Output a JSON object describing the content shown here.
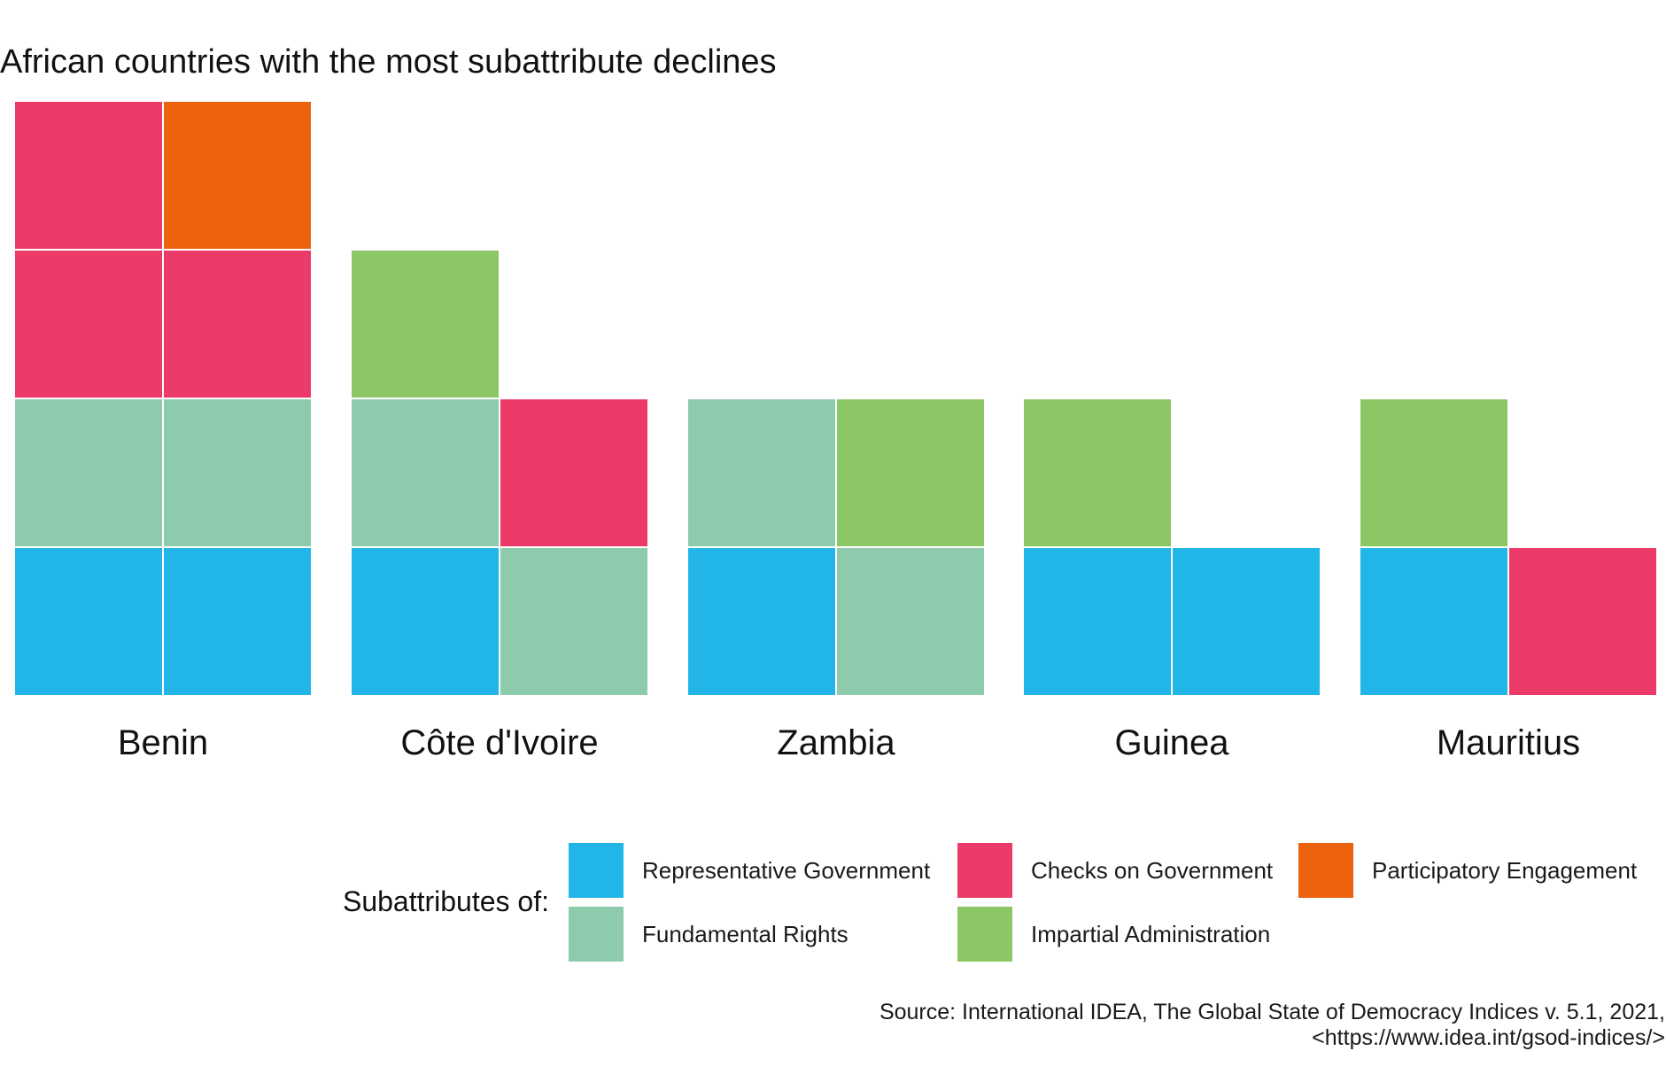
{
  "chart_data": {
    "type": "waffle",
    "title": "African countries with the most subattribute declines",
    "legend_title": "Subattributes of:",
    "categories": [
      "Benin",
      "Côte d'Ivoire",
      "Zambia",
      "Guinea",
      "Mauritius"
    ],
    "legend": [
      {
        "key": "rep",
        "label": "Representative Government",
        "color": "#21B6E7"
      },
      {
        "key": "checks",
        "label": "Checks on Government",
        "color": "#EC3A69"
      },
      {
        "key": "partic",
        "label": "Participatory Engagement",
        "color": "#EC620D"
      },
      {
        "key": "fund",
        "label": "Fundamental Rights",
        "color": "#8ECAAC"
      },
      {
        "key": "impart",
        "label": "Impartial Administration",
        "color": "#8BC865"
      }
    ],
    "countries": [
      {
        "name": "Benin",
        "total": 8,
        "cells": [
          "rep",
          "rep",
          "fund",
          "fund",
          "checks",
          "checks",
          "checks",
          "partic"
        ]
      },
      {
        "name": "Côte d'Ivoire",
        "total": 5,
        "cells": [
          "rep",
          "fund",
          "fund",
          "checks",
          "impart"
        ]
      },
      {
        "name": "Zambia",
        "total": 4,
        "cells": [
          "rep",
          "fund",
          "fund",
          "impart"
        ]
      },
      {
        "name": "Guinea",
        "total": 3,
        "cells": [
          "rep",
          "rep",
          "impart"
        ]
      },
      {
        "name": "Mauritius",
        "total": 3,
        "cells": [
          "rep",
          "checks",
          "impart"
        ]
      }
    ],
    "caption_lines": [
      "Source: International IDEA, The Global State of Democracy Indices v. 5.1, 2021,",
      "<https://www.idea.int/gsod-indices/>"
    ]
  }
}
